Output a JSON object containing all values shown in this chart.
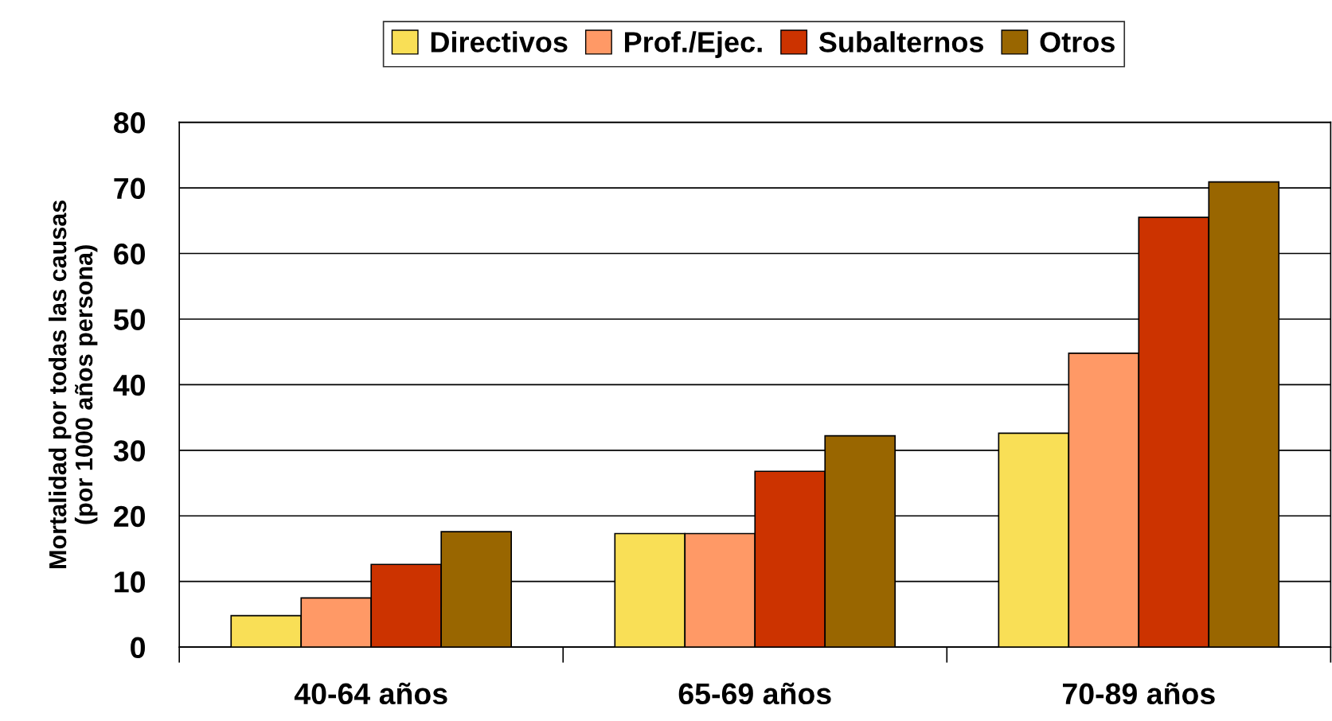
{
  "chart_data": {
    "type": "bar",
    "ylabel": "Mortalidad por todas las causas\n(por 1000 años persona)",
    "categories": [
      "40-64 años",
      "65-69 años",
      "70-89 años"
    ],
    "series": [
      {
        "name": "Directivos",
        "color": "#f9df56",
        "values": [
          4.8,
          17.3,
          32.6
        ]
      },
      {
        "name": "Prof./Ejec.",
        "color": "#ff9966",
        "values": [
          7.5,
          17.3,
          44.8
        ]
      },
      {
        "name": "Subalternos",
        "color": "#cc3300",
        "values": [
          12.6,
          26.8,
          65.5
        ]
      },
      {
        "name": "Otros",
        "color": "#996600",
        "values": [
          17.6,
          32.2,
          70.9
        ]
      }
    ],
    "ylim": [
      0,
      80
    ],
    "yticks": [
      0,
      10,
      20,
      30,
      40,
      50,
      60,
      70,
      80
    ],
    "grid": "y",
    "legend": "top"
  }
}
